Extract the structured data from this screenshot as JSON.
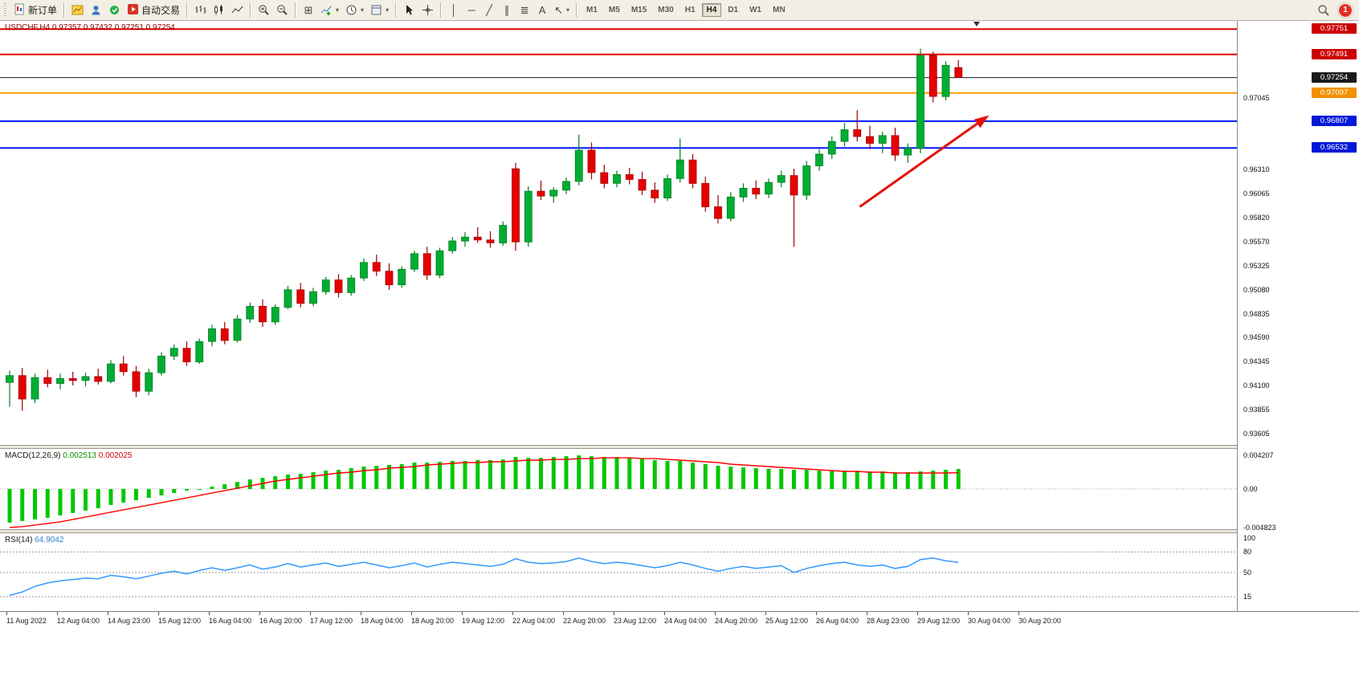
{
  "toolbar": {
    "new_order_label": "新订单",
    "autotrade_label": "自动交易",
    "timeframes": [
      "M1",
      "M5",
      "M15",
      "M30",
      "H1",
      "H4",
      "D1",
      "W1",
      "MN"
    ],
    "active_timeframe": "H4",
    "notification_count": "1",
    "icons": {
      "caret": "▾",
      "tile_windows": "⊞",
      "vertical_line": "│",
      "horizontal_line": "─",
      "trendline": "╱",
      "channel": "∥",
      "fibonacci": "≣",
      "text_tool": "A",
      "arrow_tool": "↖"
    }
  },
  "chart": {
    "symbol_quote": "USDCHF,H4  0.97357 0.97432 0.97251 0.97254",
    "price_ticks": [
      "0.97045",
      "0.96310",
      "0.96065",
      "0.95820",
      "0.95570",
      "0.95325",
      "0.95080",
      "0.94835",
      "0.94590",
      "0.94345",
      "0.94100",
      "0.93855",
      "0.93605"
    ],
    "time_labels": [
      "11 Aug 2022",
      "12 Aug 04:00",
      "14 Aug 23:00",
      "15 Aug 12:00",
      "16 Aug 04:00",
      "16 Aug 20:00",
      "17 Aug 12:00",
      "18 Aug 04:00",
      "18 Aug 20:00",
      "19 Aug 12:00",
      "22 Aug 04:00",
      "22 Aug 20:00",
      "23 Aug 12:00",
      "24 Aug 04:00",
      "24 Aug 20:00",
      "25 Aug 12:00",
      "26 Aug 04:00",
      "28 Aug 23:00",
      "29 Aug 12:00",
      "30 Aug 04:00",
      "30 Aug 20:00"
    ],
    "macd": {
      "label": "MACD(12,26,9)",
      "value_main": "0.002513",
      "value_signal": "0.002025",
      "axis": [
        "0.004207",
        "0.00",
        "-0.004823"
      ]
    },
    "rsi": {
      "label": "RSI(14)",
      "value": "64.9042",
      "axis": [
        "100",
        "80",
        "50",
        "15"
      ]
    }
  },
  "chart_data": {
    "type": "candlestick",
    "symbol": "USDCHF",
    "timeframe": "H4",
    "current_bar": {
      "open": 0.97357,
      "high": 0.97432,
      "low": 0.97251,
      "close": 0.97254
    },
    "ylim": [
      0.9349,
      0.97835
    ],
    "bars_ohlc": [
      [
        0.9413,
        0.9425,
        0.9388,
        0.942
      ],
      [
        0.942,
        0.9428,
        0.9384,
        0.9396
      ],
      [
        0.9396,
        0.9422,
        0.9392,
        0.9418
      ],
      [
        0.9418,
        0.9426,
        0.9408,
        0.9412
      ],
      [
        0.9412,
        0.9422,
        0.9406,
        0.9417
      ],
      [
        0.9417,
        0.9424,
        0.941,
        0.9415
      ],
      [
        0.9415,
        0.9423,
        0.9409,
        0.9419
      ],
      [
        0.9419,
        0.9427,
        0.9411,
        0.9414
      ],
      [
        0.9414,
        0.9436,
        0.9412,
        0.9432
      ],
      [
        0.9432,
        0.944,
        0.942,
        0.9424
      ],
      [
        0.9424,
        0.943,
        0.9398,
        0.9404
      ],
      [
        0.9404,
        0.9427,
        0.94,
        0.9423
      ],
      [
        0.9423,
        0.9444,
        0.942,
        0.944
      ],
      [
        0.944,
        0.9452,
        0.9436,
        0.9448
      ],
      [
        0.9448,
        0.9455,
        0.943,
        0.9434
      ],
      [
        0.9434,
        0.9458,
        0.9432,
        0.9455
      ],
      [
        0.9455,
        0.9472,
        0.945,
        0.9468
      ],
      [
        0.9468,
        0.9475,
        0.9452,
        0.9456
      ],
      [
        0.9456,
        0.9482,
        0.9454,
        0.9478
      ],
      [
        0.9478,
        0.9495,
        0.9474,
        0.9491
      ],
      [
        0.9491,
        0.9498,
        0.947,
        0.9475
      ],
      [
        0.9475,
        0.9493,
        0.9472,
        0.949
      ],
      [
        0.949,
        0.9512,
        0.9488,
        0.9508
      ],
      [
        0.9508,
        0.9515,
        0.949,
        0.9494
      ],
      [
        0.9494,
        0.951,
        0.9491,
        0.9506
      ],
      [
        0.9506,
        0.9521,
        0.9503,
        0.9518
      ],
      [
        0.9518,
        0.9524,
        0.95,
        0.9505
      ],
      [
        0.9505,
        0.9523,
        0.9502,
        0.952
      ],
      [
        0.952,
        0.954,
        0.9517,
        0.9536
      ],
      [
        0.9536,
        0.9544,
        0.9522,
        0.9527
      ],
      [
        0.9527,
        0.9535,
        0.9508,
        0.9513
      ],
      [
        0.9513,
        0.9532,
        0.951,
        0.9529
      ],
      [
        0.9529,
        0.9548,
        0.9526,
        0.9545
      ],
      [
        0.9545,
        0.9552,
        0.9518,
        0.9523
      ],
      [
        0.9523,
        0.9551,
        0.952,
        0.9548
      ],
      [
        0.9548,
        0.9562,
        0.9545,
        0.9558
      ],
      [
        0.9558,
        0.9567,
        0.9552,
        0.9562
      ],
      [
        0.9562,
        0.9572,
        0.9556,
        0.9559
      ],
      [
        0.9559,
        0.9568,
        0.9551,
        0.9556
      ],
      [
        0.9556,
        0.9578,
        0.9553,
        0.9574
      ],
      [
        0.9632,
        0.9638,
        0.9548,
        0.9557
      ],
      [
        0.9557,
        0.9614,
        0.9552,
        0.9609
      ],
      [
        0.9609,
        0.962,
        0.96,
        0.9604
      ],
      [
        0.9604,
        0.9613,
        0.9597,
        0.961
      ],
      [
        0.961,
        0.9623,
        0.9606,
        0.9619
      ],
      [
        0.9619,
        0.9667,
        0.9615,
        0.9651
      ],
      [
        0.9651,
        0.9659,
        0.9621,
        0.9628
      ],
      [
        0.9628,
        0.9636,
        0.9612,
        0.9617
      ],
      [
        0.9617,
        0.963,
        0.9613,
        0.9626
      ],
      [
        0.9626,
        0.9633,
        0.9616,
        0.9621
      ],
      [
        0.9621,
        0.9629,
        0.9605,
        0.961
      ],
      [
        0.961,
        0.9618,
        0.9597,
        0.9602
      ],
      [
        0.9602,
        0.9626,
        0.9599,
        0.9622
      ],
      [
        0.9622,
        0.9663,
        0.9618,
        0.9641
      ],
      [
        0.9641,
        0.9647,
        0.9612,
        0.9617
      ],
      [
        0.9617,
        0.9624,
        0.9588,
        0.9593
      ],
      [
        0.9593,
        0.9605,
        0.9576,
        0.9581
      ],
      [
        0.9581,
        0.9608,
        0.9578,
        0.9603
      ],
      [
        0.9603,
        0.9617,
        0.9598,
        0.9612
      ],
      [
        0.9612,
        0.962,
        0.9601,
        0.9606
      ],
      [
        0.9606,
        0.9622,
        0.9602,
        0.9618
      ],
      [
        0.9618,
        0.963,
        0.9613,
        0.9625
      ],
      [
        0.9625,
        0.9632,
        0.9552,
        0.9605
      ],
      [
        0.9605,
        0.964,
        0.96,
        0.9635
      ],
      [
        0.9635,
        0.9652,
        0.963,
        0.9647
      ],
      [
        0.9647,
        0.9665,
        0.9642,
        0.966
      ],
      [
        0.966,
        0.9679,
        0.9655,
        0.9672
      ],
      [
        0.9672,
        0.9692,
        0.966,
        0.9665
      ],
      [
        0.9665,
        0.9676,
        0.9652,
        0.9658
      ],
      [
        0.9658,
        0.967,
        0.9648,
        0.9666
      ],
      [
        0.9666,
        0.9674,
        0.964,
        0.9646
      ],
      [
        0.9646,
        0.9658,
        0.9638,
        0.9653
      ],
      [
        0.9653,
        0.9755,
        0.9648,
        0.9748
      ],
      [
        0.9748,
        0.9752,
        0.97,
        0.9706
      ],
      [
        0.9706,
        0.9742,
        0.9702,
        0.9738
      ],
      [
        0.97357,
        0.97432,
        0.97251,
        0.97254
      ]
    ],
    "levels": [
      {
        "price": 0.97751,
        "label": "0.97751",
        "line_color": "#e00000",
        "badge_color": "#cc0000",
        "width": 2
      },
      {
        "price": 0.97491,
        "label": "0.97491",
        "line_color": "#e00000",
        "badge_color": "#cc0000",
        "width": 2
      },
      {
        "price": 0.97254,
        "label": "0.97254",
        "line_color": "#1a1a1a",
        "badge_color": "#1a1a1a",
        "width": 1
      },
      {
        "price": 0.97097,
        "label": "0.97097",
        "line_color": "#ff9900",
        "badge_color": "#f29000",
        "width": 2
      },
      {
        "price": 0.96807,
        "label": "0.96807",
        "line_color": "#0019ff",
        "badge_color": "#0018d8",
        "width": 2
      },
      {
        "price": 0.96532,
        "label": "0.96532",
        "line_color": "#0019ff",
        "badge_color": "#0018d8",
        "width": 2
      }
    ],
    "trend_arrow": {
      "from_bar": 67.2,
      "from_price": 0.9593,
      "to_bar": 76.9,
      "to_price": 0.9682,
      "color": "#e3120b"
    },
    "style": {
      "up_fill": "#00ad33",
      "up_stroke": "#007d24",
      "down_fill": "#e60000",
      "down_stroke": "#9e0000",
      "macd_hist": "#00c800",
      "macd_signal": "#ff0000",
      "rsi_line": "#3399ff"
    },
    "indicators": {
      "macd": {
        "params": [
          12,
          26,
          9
        ],
        "ylim": [
          -0.004823,
          0.004207
        ],
        "histogram": [
          -0.0042,
          -0.004,
          -0.0038,
          -0.0036,
          -0.0033,
          -0.003,
          -0.0027,
          -0.0024,
          -0.002,
          -0.0017,
          -0.0014,
          -0.0011,
          -0.0008,
          -0.0005,
          -0.0002,
          0.0,
          0.0003,
          0.0006,
          0.0009,
          0.0012,
          0.0014,
          0.0016,
          0.0018,
          0.0019,
          0.0021,
          0.0023,
          0.0024,
          0.0026,
          0.0028,
          0.0029,
          0.003,
          0.0031,
          0.0033,
          0.0033,
          0.0034,
          0.0035,
          0.0035,
          0.0036,
          0.0036,
          0.0037,
          0.004,
          0.0039,
          0.0039,
          0.004,
          0.0041,
          0.0042,
          0.0041,
          0.004,
          0.004,
          0.0039,
          0.0038,
          0.0036,
          0.0035,
          0.0035,
          0.0033,
          0.0031,
          0.0029,
          0.0028,
          0.0027,
          0.0026,
          0.0025,
          0.0025,
          0.0024,
          0.0024,
          0.0023,
          0.0023,
          0.0023,
          0.0023,
          0.0022,
          0.0022,
          0.0021,
          0.0021,
          0.0022,
          0.0023,
          0.0024,
          0.002513
        ],
        "signal": [
          -0.0048,
          -0.0047,
          -0.0045,
          -0.0043,
          -0.0041,
          -0.0038,
          -0.0035,
          -0.0032,
          -0.0029,
          -0.0026,
          -0.0023,
          -0.002,
          -0.0017,
          -0.0014,
          -0.0011,
          -0.0008,
          -0.0005,
          -0.0002,
          0.0001,
          0.0004,
          0.0007,
          0.001,
          0.0012,
          0.0014,
          0.0016,
          0.0018,
          0.002,
          0.0021,
          0.0023,
          0.0024,
          0.0026,
          0.0027,
          0.0028,
          0.003,
          0.0031,
          0.0032,
          0.0033,
          0.0033,
          0.0034,
          0.0034,
          0.0035,
          0.0036,
          0.0036,
          0.0037,
          0.0037,
          0.0038,
          0.0038,
          0.0039,
          0.0039,
          0.0039,
          0.0038,
          0.0038,
          0.0037,
          0.0036,
          0.0035,
          0.0034,
          0.0033,
          0.0031,
          0.003,
          0.0029,
          0.0028,
          0.0027,
          0.0026,
          0.0025,
          0.0024,
          0.0023,
          0.0022,
          0.0022,
          0.0021,
          0.0021,
          0.002,
          0.002,
          0.002,
          0.002,
          0.002,
          0.002025
        ]
      },
      "rsi": {
        "params": [
          14
        ],
        "ylim": [
          0,
          100
        ],
        "levels": [
          80,
          50,
          15
        ],
        "values": [
          17,
          22,
          30,
          35,
          38,
          40,
          42,
          41,
          46,
          44,
          41,
          45,
          49,
          52,
          48,
          53,
          57,
          53,
          57,
          61,
          55,
          58,
          63,
          58,
          61,
          64,
          59,
          62,
          65,
          61,
          57,
          60,
          64,
          58,
          62,
          65,
          63,
          61,
          59,
          62,
          70,
          65,
          63,
          64,
          66,
          71,
          66,
          63,
          65,
          63,
          60,
          57,
          60,
          65,
          61,
          56,
          52,
          56,
          59,
          56,
          58,
          60,
          50,
          56,
          60,
          63,
          65,
          61,
          59,
          61,
          56,
          59,
          69,
          71,
          67,
          64.9
        ]
      }
    }
  }
}
